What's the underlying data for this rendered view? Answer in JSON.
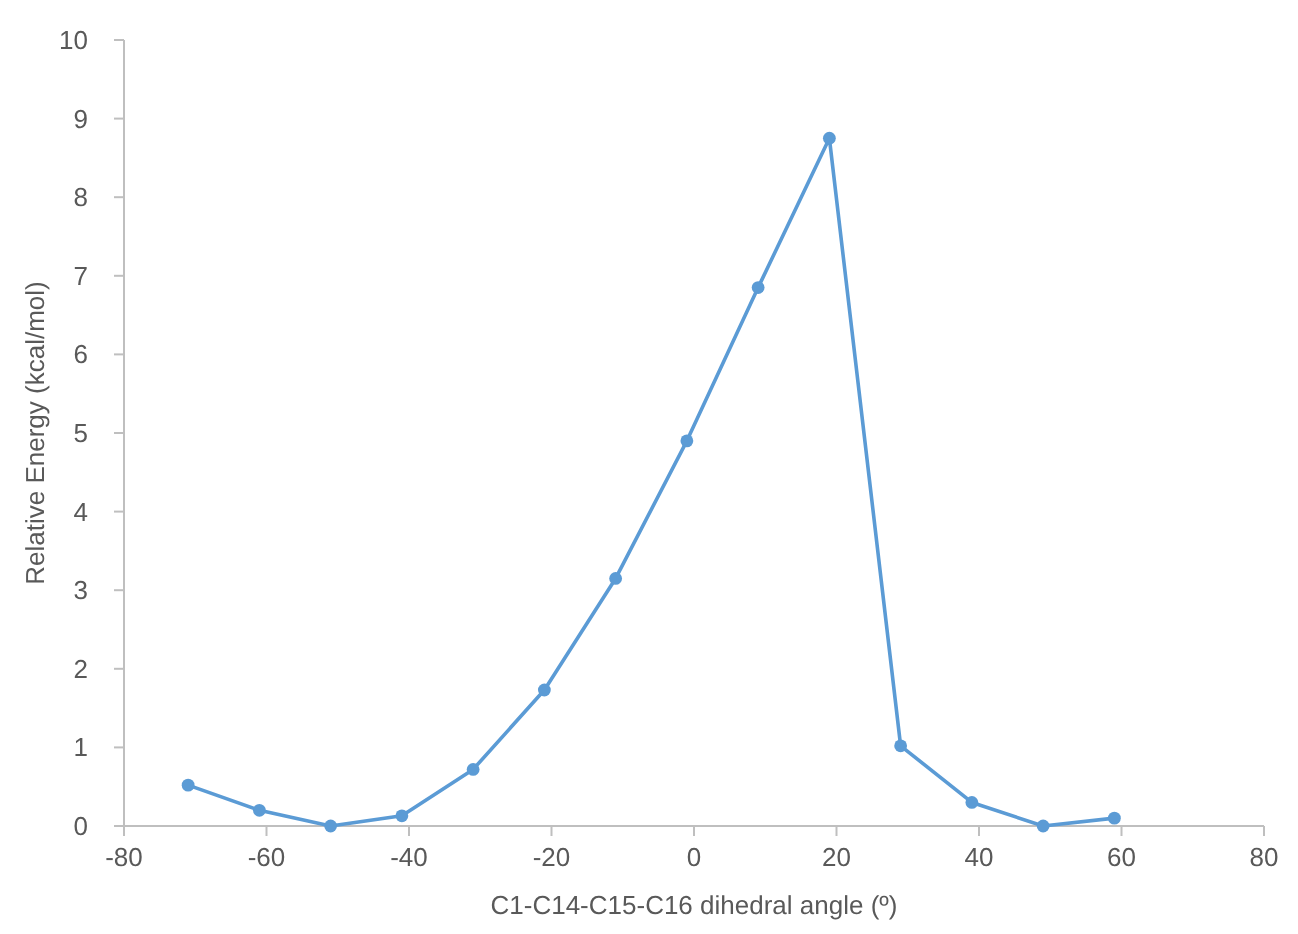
{
  "chart_data": {
    "type": "line",
    "xlabel": "C1-C14-C15-C16 dihedral angle (º)",
    "ylabel": "Relative Energy (kcal/mol)",
    "x": [
      -71,
      -61,
      -51,
      -41,
      -31,
      -21,
      -11,
      -1,
      9,
      19,
      29,
      39,
      49,
      59
    ],
    "series": [
      {
        "color": "#5b9bd5",
        "values": [
          0.52,
          0.2,
          0.0,
          0.13,
          0.72,
          1.73,
          3.15,
          4.9,
          6.85,
          8.75,
          1.02,
          0.3,
          0.0,
          0.1
        ]
      }
    ],
    "xlim": [
      -80,
      80
    ],
    "xticks": [
      -80,
      -60,
      -40,
      -20,
      0,
      20,
      40,
      60,
      80
    ],
    "ylim": [
      0,
      10
    ],
    "yticks": [
      0,
      1,
      2,
      3,
      4,
      5,
      6,
      7,
      8,
      9,
      10
    ],
    "grid": false,
    "marker": "circle",
    "line_style": "solid"
  }
}
